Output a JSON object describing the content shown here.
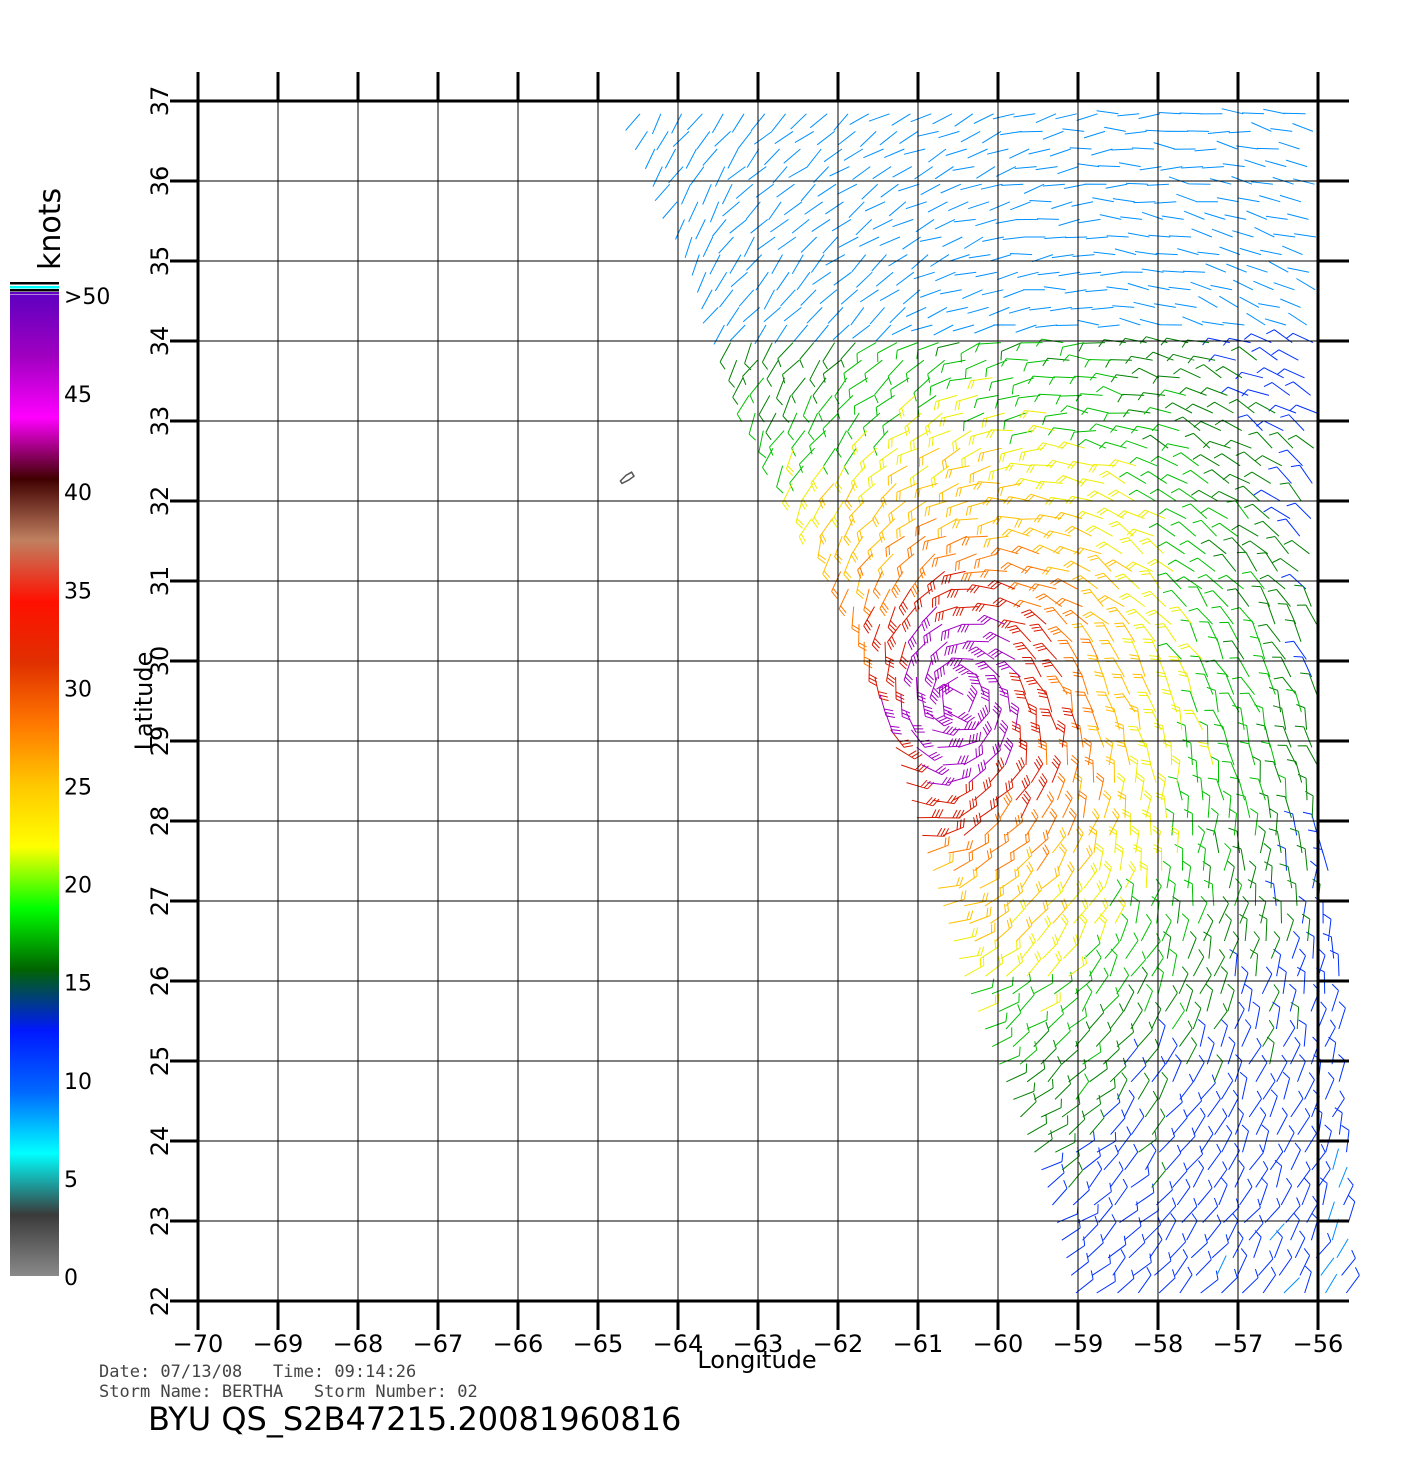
{
  "chart_data": {
    "type": "scatter",
    "xlabel": "Longitude",
    "ylabel": "Latitude",
    "xlim": [
      -70,
      -56
    ],
    "ylim": [
      22,
      37
    ],
    "x_ticks": [
      "−70",
      "−69",
      "−68",
      "−67",
      "−66",
      "−65",
      "−64",
      "−63",
      "−62",
      "−61",
      "−60",
      "−59",
      "−58",
      "−57",
      "−56"
    ],
    "y_ticks": [
      "22",
      "23",
      "24",
      "25",
      "26",
      "27",
      "28",
      "29",
      "30",
      "31",
      "32",
      "33",
      "34",
      "35",
      "36",
      "37"
    ],
    "grid": true,
    "colorbar": {
      "title": "knots",
      "labels": [
        "0",
        "5",
        "10",
        "15",
        "20",
        "25",
        "30",
        "35",
        "40",
        "45",
        ">50"
      ],
      "colors": [
        "#8a8a8a",
        "#3a3a3a",
        "#00ffff",
        "#0068ff",
        "#0018ff",
        "#006400",
        "#00ff00",
        "#ffff00",
        "#ffc800",
        "#ff7800",
        "#e03000",
        "#ff1000",
        "#c08060",
        "#400000",
        "#ff00ff",
        "#a000c0",
        "#6000c0"
      ]
    },
    "swath": {
      "west_edge": [
        [
          -64.5,
          36.9
        ],
        [
          -63.7,
          35.0
        ],
        [
          -63.0,
          33.0
        ],
        [
          -61.9,
          31.0
        ],
        [
          -61.0,
          28.0
        ],
        [
          -60.4,
          26.0
        ],
        [
          -59.4,
          23.5
        ],
        [
          -59.0,
          22.0
        ]
      ],
      "east_edge": [
        [
          -56.0,
          37.0
        ],
        [
          -56.0,
          29.0
        ],
        [
          -55.7,
          26.0
        ],
        [
          -55.6,
          23.0
        ],
        [
          -55.6,
          22.0
        ]
      ],
      "storm_center": [
        -60.5,
        29.5
      ]
    },
    "island_outline": [
      [
        -64.72,
        32.25
      ],
      [
        -64.65,
        32.32
      ],
      [
        -64.58,
        32.36
      ],
      [
        -64.55,
        32.31
      ],
      [
        -64.62,
        32.26
      ],
      [
        -64.7,
        32.22
      ]
    ]
  },
  "info": {
    "date_line": "Date: 07/13/08   Time: 09:14:26",
    "storm_line": "Storm Name: BERTHA   Storm Number: 02",
    "file_id": "BYU QS_S2B47215.20081960816"
  }
}
